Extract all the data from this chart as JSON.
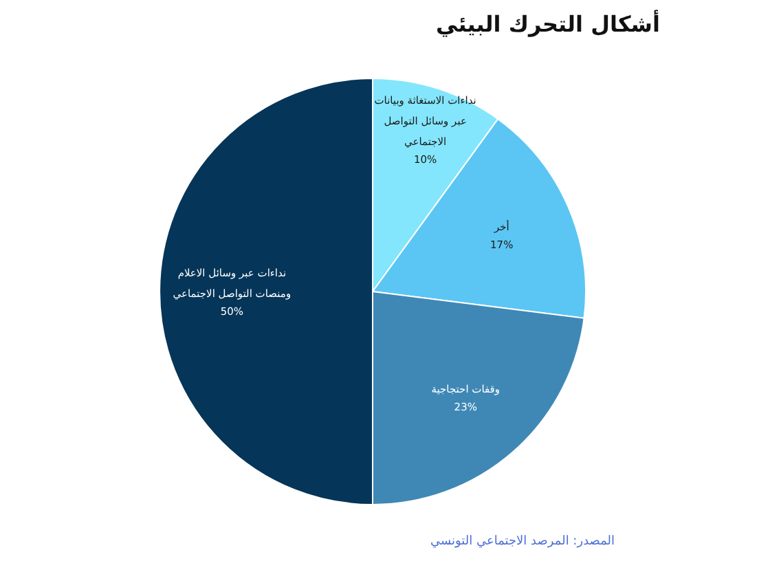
{
  "chart_data": {
    "type": "pie",
    "title": "أشكال التحرك البيئي",
    "categories": [
      "نداءات الاستغاثة وبيانات عبر وسائل التواصل الاجتماعي",
      "أخر",
      "وقفات احتجاجية",
      "نداءات عبر وسائل الاعلام ومنصات التواصل الاجتماعي"
    ],
    "values": [
      10,
      17,
      23,
      50
    ],
    "colors": [
      "#84e6fc",
      "#5bc6f3",
      "#3f88b6",
      "#053558"
    ],
    "value_labels": [
      "10%",
      "17%",
      "23%",
      "50%"
    ],
    "annotations": [
      "المصدر: المرصد الاجتماعي التونسي"
    ]
  }
}
